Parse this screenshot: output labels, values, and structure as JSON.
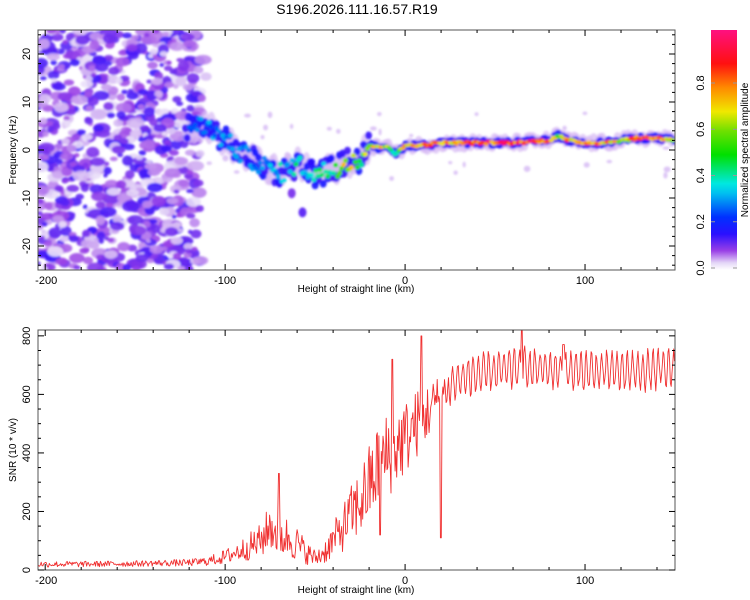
{
  "chart_data": [
    {
      "type": "heatmap",
      "title": "S196.2026.111.16.57.R19",
      "xlabel": "Height of straight line (km)",
      "ylabel": "Frequency (Hz)",
      "xlim": [
        -204,
        150
      ],
      "ylim": [
        -25,
        25
      ],
      "xticks": [
        -200,
        -100,
        0,
        100
      ],
      "xtick_labels": [
        "-200",
        "-100",
        "0",
        "100"
      ],
      "yticks": [
        -20,
        -10,
        0,
        10,
        20
      ],
      "ytick_labels": [
        "-20",
        "-10",
        "0",
        "10",
        "20"
      ],
      "colorbar": {
        "label": "Normalized spectral amplitude",
        "range": [
          0.0,
          1.0
        ],
        "ticks": [
          0.0,
          0.2,
          0.4,
          0.6,
          0.8
        ],
        "tick_labels": [
          "0.0",
          "0.2",
          "0.4",
          "0.6",
          "0.8"
        ],
        "colors": [
          "#ffffff",
          "#d9c8f5",
          "#8a2be2",
          "#1010ff",
          "#00e5ee",
          "#00e000",
          "#f5e600",
          "#ff2200",
          "#ff0f80"
        ]
      },
      "noise_region": {
        "x_range": [
          -204,
          -110
        ],
        "y_range": [
          -25,
          25
        ],
        "amplitude": 0.12
      },
      "ridge": {
        "description_points_x": [
          -120,
          -110,
          -100,
          -90,
          -80,
          -70,
          -60,
          -50,
          -40,
          -30,
          -25,
          -20,
          -15,
          -10,
          -5,
          0,
          10,
          20,
          40,
          60,
          80,
          85,
          90,
          100,
          110,
          120,
          130,
          140,
          150
        ],
        "frequency_hz": [
          5,
          5,
          2,
          -1,
          -3,
          -5,
          -3,
          -5,
          -4,
          -2,
          -2,
          1,
          0.5,
          1,
          -1,
          1,
          1,
          1.5,
          1.5,
          1.5,
          2,
          3,
          2,
          1.5,
          1.5,
          2,
          2.5,
          2.5,
          2
        ],
        "amplitude": [
          0.25,
          0.3,
          0.3,
          0.3,
          0.3,
          0.35,
          0.4,
          0.4,
          0.45,
          0.8,
          0.5,
          0.7,
          0.8,
          0.6,
          0.4,
          0.8,
          0.85,
          0.8,
          0.9,
          0.9,
          0.9,
          0.6,
          0.8,
          0.85,
          0.8,
          0.7,
          0.9,
          0.9,
          0.6
        ]
      },
      "isolated_blobs": [
        {
          "x": -63,
          "y": -9,
          "amplitude": 0.1
        },
        {
          "x": -57,
          "y": -13,
          "amplitude": 0.12
        }
      ]
    },
    {
      "type": "line",
      "xlabel": "Height of straight line (km)",
      "ylabel": "SNR (10 * v/v)",
      "xlim": [
        -204,
        150
      ],
      "ylim": [
        0,
        820
      ],
      "xticks": [
        -200,
        -100,
        0,
        100
      ],
      "xtick_labels": [
        "-200",
        "-100",
        "0",
        "100"
      ],
      "yticks": [
        0,
        200,
        400,
        600,
        800
      ],
      "ytick_labels": [
        "0",
        "200",
        "400",
        "600",
        "800"
      ],
      "series": [
        {
          "name": "SNR",
          "color": "#f03030",
          "x": [
            -204,
            -180,
            -150,
            -120,
            -110,
            -100,
            -90,
            -80,
            -75,
            -70,
            -65,
            -60,
            -55,
            -50,
            -45,
            -40,
            -35,
            -30,
            -25,
            -20,
            -15,
            -10,
            -5,
            0,
            5,
            10,
            15,
            20,
            25,
            30,
            40,
            50,
            60,
            70,
            80,
            90,
            100,
            110,
            120,
            130,
            140,
            150
          ],
          "y": [
            20,
            20,
            22,
            25,
            30,
            45,
            70,
            100,
            150,
            120,
            110,
            90,
            60,
            40,
            60,
            100,
            140,
            190,
            230,
            290,
            350,
            390,
            420,
            450,
            490,
            520,
            560,
            600,
            630,
            650,
            670,
            680,
            690,
            690,
            685,
            680,
            680,
            680,
            680,
            680,
            685,
            690
          ],
          "noise_amplitude": [
            10,
            10,
            10,
            12,
            15,
            25,
            40,
            60,
            80,
            80,
            70,
            60,
            40,
            30,
            40,
            60,
            80,
            100,
            120,
            140,
            150,
            150,
            140,
            130,
            120,
            110,
            90,
            70,
            60,
            60,
            60,
            60,
            60,
            60,
            60,
            60,
            60,
            60,
            60,
            60,
            60,
            60
          ],
          "peaks": [
            {
              "x": -7,
              "y": 720
            },
            {
              "x": 9,
              "y": 800
            },
            {
              "x": 65,
              "y": 820
            },
            {
              "x": 88,
              "y": 770
            },
            {
              "x": -70,
              "y": 330
            }
          ],
          "dips": [
            {
              "x": -14,
              "y": 120
            },
            {
              "x": 20,
              "y": 110
            }
          ]
        }
      ]
    }
  ]
}
